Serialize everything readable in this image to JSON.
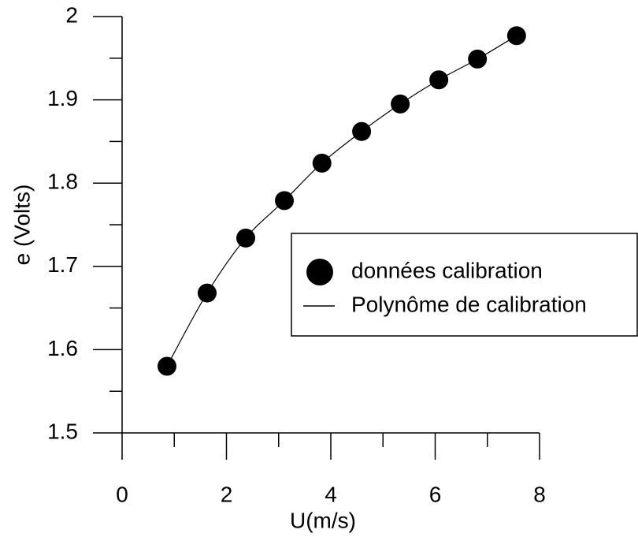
{
  "chart_data": {
    "type": "scatter",
    "xlabel": "U(m/s)",
    "ylabel": "e (Volts)",
    "xlim": [
      0,
      8
    ],
    "xticks": [
      0,
      2,
      4,
      6,
      8
    ],
    "xminor": [
      1,
      3,
      5,
      7
    ],
    "ylim": [
      1.5,
      2
    ],
    "yticks": [
      1.5,
      1.6,
      1.7,
      1.8,
      1.9,
      2
    ],
    "yminor": [
      1.55,
      1.65,
      1.75,
      1.85,
      1.95
    ],
    "legend": "right",
    "series": [
      {
        "name": "données calibration",
        "kind": "scatter",
        "color": "#000000",
        "x": [
          0.86,
          1.63,
          2.37,
          3.11,
          3.83,
          4.59,
          5.33,
          6.07,
          6.81,
          7.56
        ],
        "values": [
          1.58,
          1.668,
          1.734,
          1.779,
          1.824,
          1.862,
          1.895,
          1.924,
          1.949,
          1.977
        ]
      },
      {
        "name": "Polynôme de calibration",
        "kind": "line",
        "color": "#000000",
        "x": [
          0.86,
          1.63,
          2.37,
          3.11,
          3.83,
          4.59,
          5.33,
          6.07,
          6.81,
          7.56
        ],
        "values": [
          1.58,
          1.668,
          1.734,
          1.779,
          1.824,
          1.862,
          1.895,
          1.924,
          1.949,
          1.977
        ]
      }
    ]
  }
}
